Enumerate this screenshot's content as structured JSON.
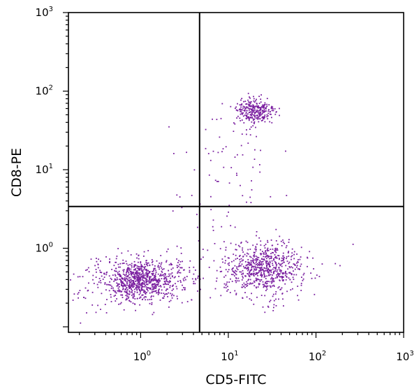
{
  "chart_data": {
    "type": "scatter",
    "title": "",
    "xlabel": "CD5-FITC",
    "ylabel": "CD8-PE",
    "xscale": "log",
    "yscale": "log",
    "xlim": [
      0.15,
      1000
    ],
    "ylim": [
      0.085,
      1000
    ],
    "grid": false,
    "legend": "none",
    "point_color": "#7a1fa0",
    "x_ticks": [
      {
        "base": "10",
        "exp": "0"
      },
      {
        "base": "10",
        "exp": "1"
      },
      {
        "base": "10",
        "exp": "2"
      },
      {
        "base": "10",
        "exp": "3"
      }
    ],
    "y_ticks": [
      {
        "base": "10",
        "exp": "0"
      },
      {
        "base": "10",
        "exp": "1"
      },
      {
        "base": "10",
        "exp": "2"
      },
      {
        "base": "10",
        "exp": "3"
      }
    ],
    "quadrant_gate": {
      "x": 4.7,
      "y": 3.4
    },
    "clusters": [
      {
        "center": [
          0.95,
          0.4
        ],
        "spread": [
          0.18,
          0.12
        ],
        "count": 650
      },
      {
        "center": [
          0.6,
          0.35
        ],
        "spread": [
          0.3,
          0.2
        ],
        "count": 150
      },
      {
        "center": [
          2.2,
          0.4
        ],
        "spread": [
          0.2,
          0.15
        ],
        "count": 150
      },
      {
        "center": [
          25,
          0.55
        ],
        "spread": [
          0.22,
          0.15
        ],
        "count": 600
      },
      {
        "center": [
          30,
          0.5
        ],
        "spread": [
          0.3,
          0.25
        ],
        "count": 120
      },
      {
        "center": [
          20,
          55
        ],
        "spread": [
          0.12,
          0.09
        ],
        "count": 280
      },
      {
        "center": [
          10,
          12
        ],
        "spread": [
          0.25,
          0.35
        ],
        "count": 60
      },
      {
        "center": [
          5,
          1.5
        ],
        "spread": [
          0.4,
          0.3
        ],
        "count": 30
      }
    ]
  }
}
